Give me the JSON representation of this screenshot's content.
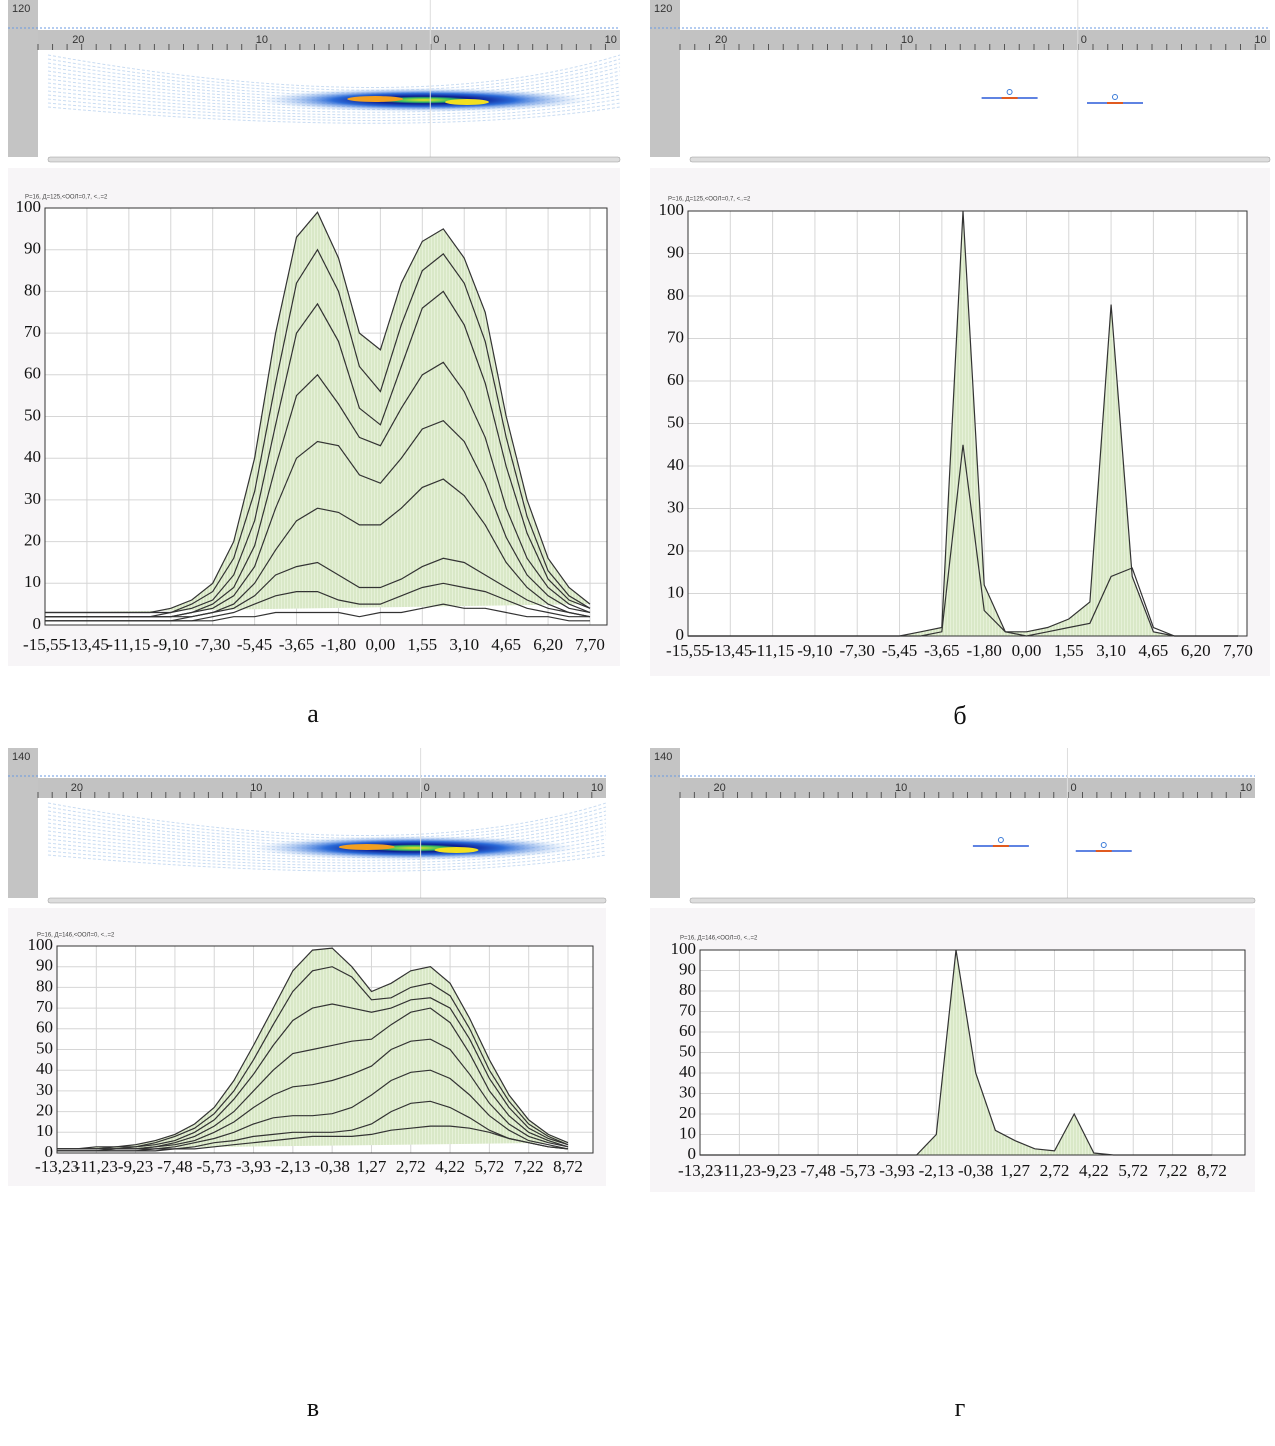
{
  "chart_data": [
    {
      "type": "area",
      "subtitle": "Р=16, Д=125,<ООЛ=0,7, <..=2",
      "categories": [
        "-15,55",
        null,
        "-13,45",
        null,
        "-11,15",
        null,
        "-9,10",
        null,
        "-7,30",
        null,
        "-5,45",
        null,
        "-3,65",
        null,
        "-1,80",
        null,
        "0,00",
        null,
        "1,55",
        null,
        "3,10",
        null,
        "4,65",
        null,
        "6,20",
        null,
        "7,70"
      ],
      "fill": "#e2eed2",
      "grid": true,
      "ylim": [
        0,
        100
      ],
      "yticks": [
        0,
        10,
        20,
        30,
        40,
        50,
        60,
        70,
        80,
        90,
        100
      ],
      "series": [
        {
          "color": "#333333",
          "values": [
            3,
            3,
            3,
            3,
            3,
            3,
            4,
            6,
            10,
            20,
            40,
            70,
            93,
            99,
            88,
            70,
            66,
            82,
            92,
            95,
            88,
            75,
            50,
            30,
            16,
            9,
            5
          ]
        },
        {
          "color": "#333333",
          "values": [
            3,
            3,
            3,
            3,
            3,
            3,
            3,
            5,
            8,
            16,
            32,
            58,
            82,
            90,
            80,
            62,
            56,
            72,
            85,
            89,
            82,
            68,
            45,
            26,
            13,
            7,
            4
          ]
        },
        {
          "color": "#333333",
          "values": [
            2,
            2,
            2,
            2,
            2,
            2,
            3,
            4,
            6,
            12,
            25,
            48,
            70,
            77,
            68,
            52,
            48,
            62,
            76,
            80,
            72,
            58,
            38,
            22,
            11,
            6,
            4
          ]
        },
        {
          "color": "#333333",
          "values": [
            2,
            2,
            2,
            2,
            2,
            2,
            2,
            3,
            5,
            9,
            19,
            38,
            55,
            60,
            53,
            45,
            43,
            52,
            60,
            63,
            56,
            45,
            28,
            16,
            9,
            5,
            3
          ]
        },
        {
          "color": "#333333",
          "values": [
            2,
            2,
            2,
            2,
            2,
            2,
            2,
            3,
            4,
            7,
            14,
            28,
            40,
            44,
            43,
            36,
            34,
            40,
            47,
            49,
            44,
            34,
            21,
            12,
            7,
            4,
            3
          ]
        },
        {
          "color": "#333333",
          "values": [
            2,
            2,
            2,
            2,
            2,
            2,
            2,
            2,
            3,
            5,
            10,
            18,
            25,
            28,
            27,
            24,
            24,
            28,
            33,
            35,
            31,
            24,
            15,
            9,
            5,
            3,
            2
          ]
        },
        {
          "color": "#333333",
          "values": [
            1,
            1,
            1,
            1,
            1,
            1,
            1,
            2,
            3,
            4,
            7,
            12,
            14,
            15,
            12,
            9,
            9,
            11,
            14,
            16,
            15,
            12,
            9,
            6,
            4,
            3,
            2
          ]
        },
        {
          "color": "#333333",
          "values": [
            1,
            1,
            1,
            1,
            1,
            1,
            1,
            1,
            2,
            3,
            5,
            7,
            8,
            8,
            6,
            5,
            5,
            7,
            9,
            10,
            9,
            8,
            6,
            4,
            3,
            2,
            2
          ]
        },
        {
          "color": "#333333",
          "values": [
            1,
            1,
            1,
            1,
            1,
            1,
            1,
            1,
            1,
            2,
            2,
            3,
            3,
            3,
            3,
            2,
            3,
            3,
            4,
            5,
            4,
            4,
            3,
            2,
            2,
            1,
            1
          ]
        }
      ]
    },
    {
      "type": "area",
      "subtitle": "Р=16, Д=125,<ООЛ=0,7, <..=2",
      "categories": [
        "-15,55",
        null,
        "-13,45",
        null,
        "-11,15",
        null,
        "-9,10",
        null,
        "-7,30",
        null,
        "-5,45",
        null,
        "-3,65",
        null,
        "-1,80",
        null,
        "0,00",
        null,
        "1,55",
        null,
        "3,10",
        null,
        "4,65",
        null,
        "6,20",
        null,
        "7,70"
      ],
      "fill": "#e2eed2",
      "grid": true,
      "ylim": [
        0,
        100
      ],
      "yticks": [
        0,
        10,
        20,
        30,
        40,
        50,
        60,
        70,
        80,
        90,
        100
      ],
      "series": [
        {
          "color": "#333333",
          "values": [
            0,
            0,
            0,
            0,
            0,
            0,
            0,
            0,
            0,
            0,
            0,
            1,
            2,
            100,
            12,
            1,
            1,
            2,
            4,
            8,
            78,
            14,
            1,
            0,
            0,
            0,
            0
          ]
        },
        {
          "color": "#333333",
          "values": [
            0,
            0,
            0,
            0,
            0,
            0,
            0,
            0,
            0,
            0,
            0,
            0,
            1,
            45,
            6,
            1,
            0,
            1,
            2,
            3,
            14,
            16,
            2,
            0,
            0,
            0,
            0
          ]
        }
      ]
    },
    {
      "type": "area",
      "subtitle": "Р=16, Д=146,<ООЛ=0, <..=2",
      "categories": [
        "-13,23",
        null,
        "-11,23",
        null,
        "-9,23",
        null,
        "-7,48",
        null,
        "-5,73",
        null,
        "-3,93",
        null,
        "-2,13",
        null,
        "-0,38",
        null,
        "1,27",
        null,
        "2,72",
        null,
        "4,22",
        null,
        "5,72",
        null,
        "7,22",
        null,
        "8,72"
      ],
      "fill": "#e2eed2",
      "grid": true,
      "ylim": [
        0,
        100
      ],
      "yticks": [
        0,
        10,
        20,
        30,
        40,
        50,
        60,
        70,
        80,
        90,
        100
      ],
      "series": [
        {
          "color": "#333333",
          "values": [
            2,
            2,
            3,
            3,
            4,
            6,
            9,
            14,
            22,
            35,
            52,
            70,
            88,
            98,
            99,
            90,
            78,
            82,
            88,
            90,
            82,
            65,
            45,
            28,
            16,
            9,
            5
          ]
        },
        {
          "color": "#333333",
          "values": [
            2,
            2,
            2,
            3,
            3,
            5,
            8,
            12,
            19,
            30,
            45,
            62,
            78,
            88,
            90,
            85,
            74,
            75,
            80,
            82,
            76,
            60,
            40,
            25,
            14,
            8,
            4
          ]
        },
        {
          "color": "#333333",
          "values": [
            2,
            2,
            2,
            2,
            3,
            4,
            6,
            10,
            16,
            26,
            38,
            52,
            64,
            70,
            72,
            70,
            68,
            70,
            74,
            75,
            70,
            55,
            36,
            22,
            12,
            7,
            4
          ]
        },
        {
          "color": "#333333",
          "values": [
            2,
            2,
            2,
            2,
            2,
            3,
            5,
            8,
            13,
            20,
            30,
            40,
            48,
            50,
            52,
            54,
            55,
            62,
            68,
            70,
            63,
            48,
            30,
            18,
            10,
            6,
            3
          ]
        },
        {
          "color": "#333333",
          "values": [
            2,
            2,
            2,
            2,
            2,
            3,
            4,
            6,
            10,
            15,
            22,
            28,
            32,
            33,
            35,
            38,
            42,
            50,
            54,
            55,
            50,
            38,
            24,
            14,
            8,
            5,
            3
          ]
        },
        {
          "color": "#333333",
          "values": [
            1,
            1,
            1,
            2,
            2,
            2,
            3,
            5,
            7,
            10,
            14,
            17,
            18,
            18,
            19,
            22,
            28,
            35,
            39,
            40,
            36,
            28,
            18,
            11,
            6,
            4,
            2
          ]
        },
        {
          "color": "#333333",
          "values": [
            1,
            1,
            1,
            1,
            1,
            2,
            2,
            3,
            5,
            6,
            8,
            9,
            10,
            10,
            10,
            11,
            14,
            20,
            24,
            25,
            22,
            17,
            11,
            7,
            5,
            3,
            2
          ]
        },
        {
          "color": "#333333",
          "values": [
            1,
            1,
            1,
            1,
            1,
            1,
            2,
            2,
            3,
            4,
            5,
            6,
            7,
            8,
            8,
            8,
            9,
            11,
            12,
            13,
            13,
            12,
            10,
            7,
            5,
            3,
            2
          ]
        }
      ]
    },
    {
      "type": "area",
      "subtitle": "Р=16, Д=146,<ООЛ=0, <..=2",
      "categories": [
        "-13,23",
        null,
        "-11,23",
        null,
        "-9,23",
        null,
        "-7,48",
        null,
        "-5,73",
        null,
        "-3,93",
        null,
        "-2,13",
        null,
        "-0,38",
        null,
        "1,27",
        null,
        "2,72",
        null,
        "4,22",
        null,
        "5,72",
        null,
        "7,22",
        null,
        "8,72"
      ],
      "fill": "#e2eed2",
      "grid": true,
      "ylim": [
        0,
        100
      ],
      "yticks": [
        0,
        10,
        20,
        30,
        40,
        50,
        60,
        70,
        80,
        90,
        100
      ],
      "series": [
        {
          "color": "#333333",
          "values": [
            0,
            0,
            0,
            0,
            0,
            0,
            0,
            0,
            0,
            0,
            0,
            0,
            10,
            100,
            40,
            12,
            7,
            3,
            2,
            20,
            1,
            0,
            0,
            0,
            0,
            0,
            0
          ]
        }
      ]
    }
  ],
  "panels": [
    {
      "depth_label": "120",
      "ruler": [
        "20",
        "10",
        "0",
        "10"
      ],
      "caption": "а"
    },
    {
      "depth_label": "120",
      "ruler": [
        "20",
        "10",
        "0",
        "10"
      ],
      "caption": "б"
    },
    {
      "depth_label": "140",
      "ruler": [
        "20",
        "10",
        "0",
        "10"
      ],
      "caption": "в"
    },
    {
      "depth_label": "140",
      "ruler": [
        "20",
        "10",
        "0",
        "10"
      ],
      "caption": "г"
    }
  ]
}
